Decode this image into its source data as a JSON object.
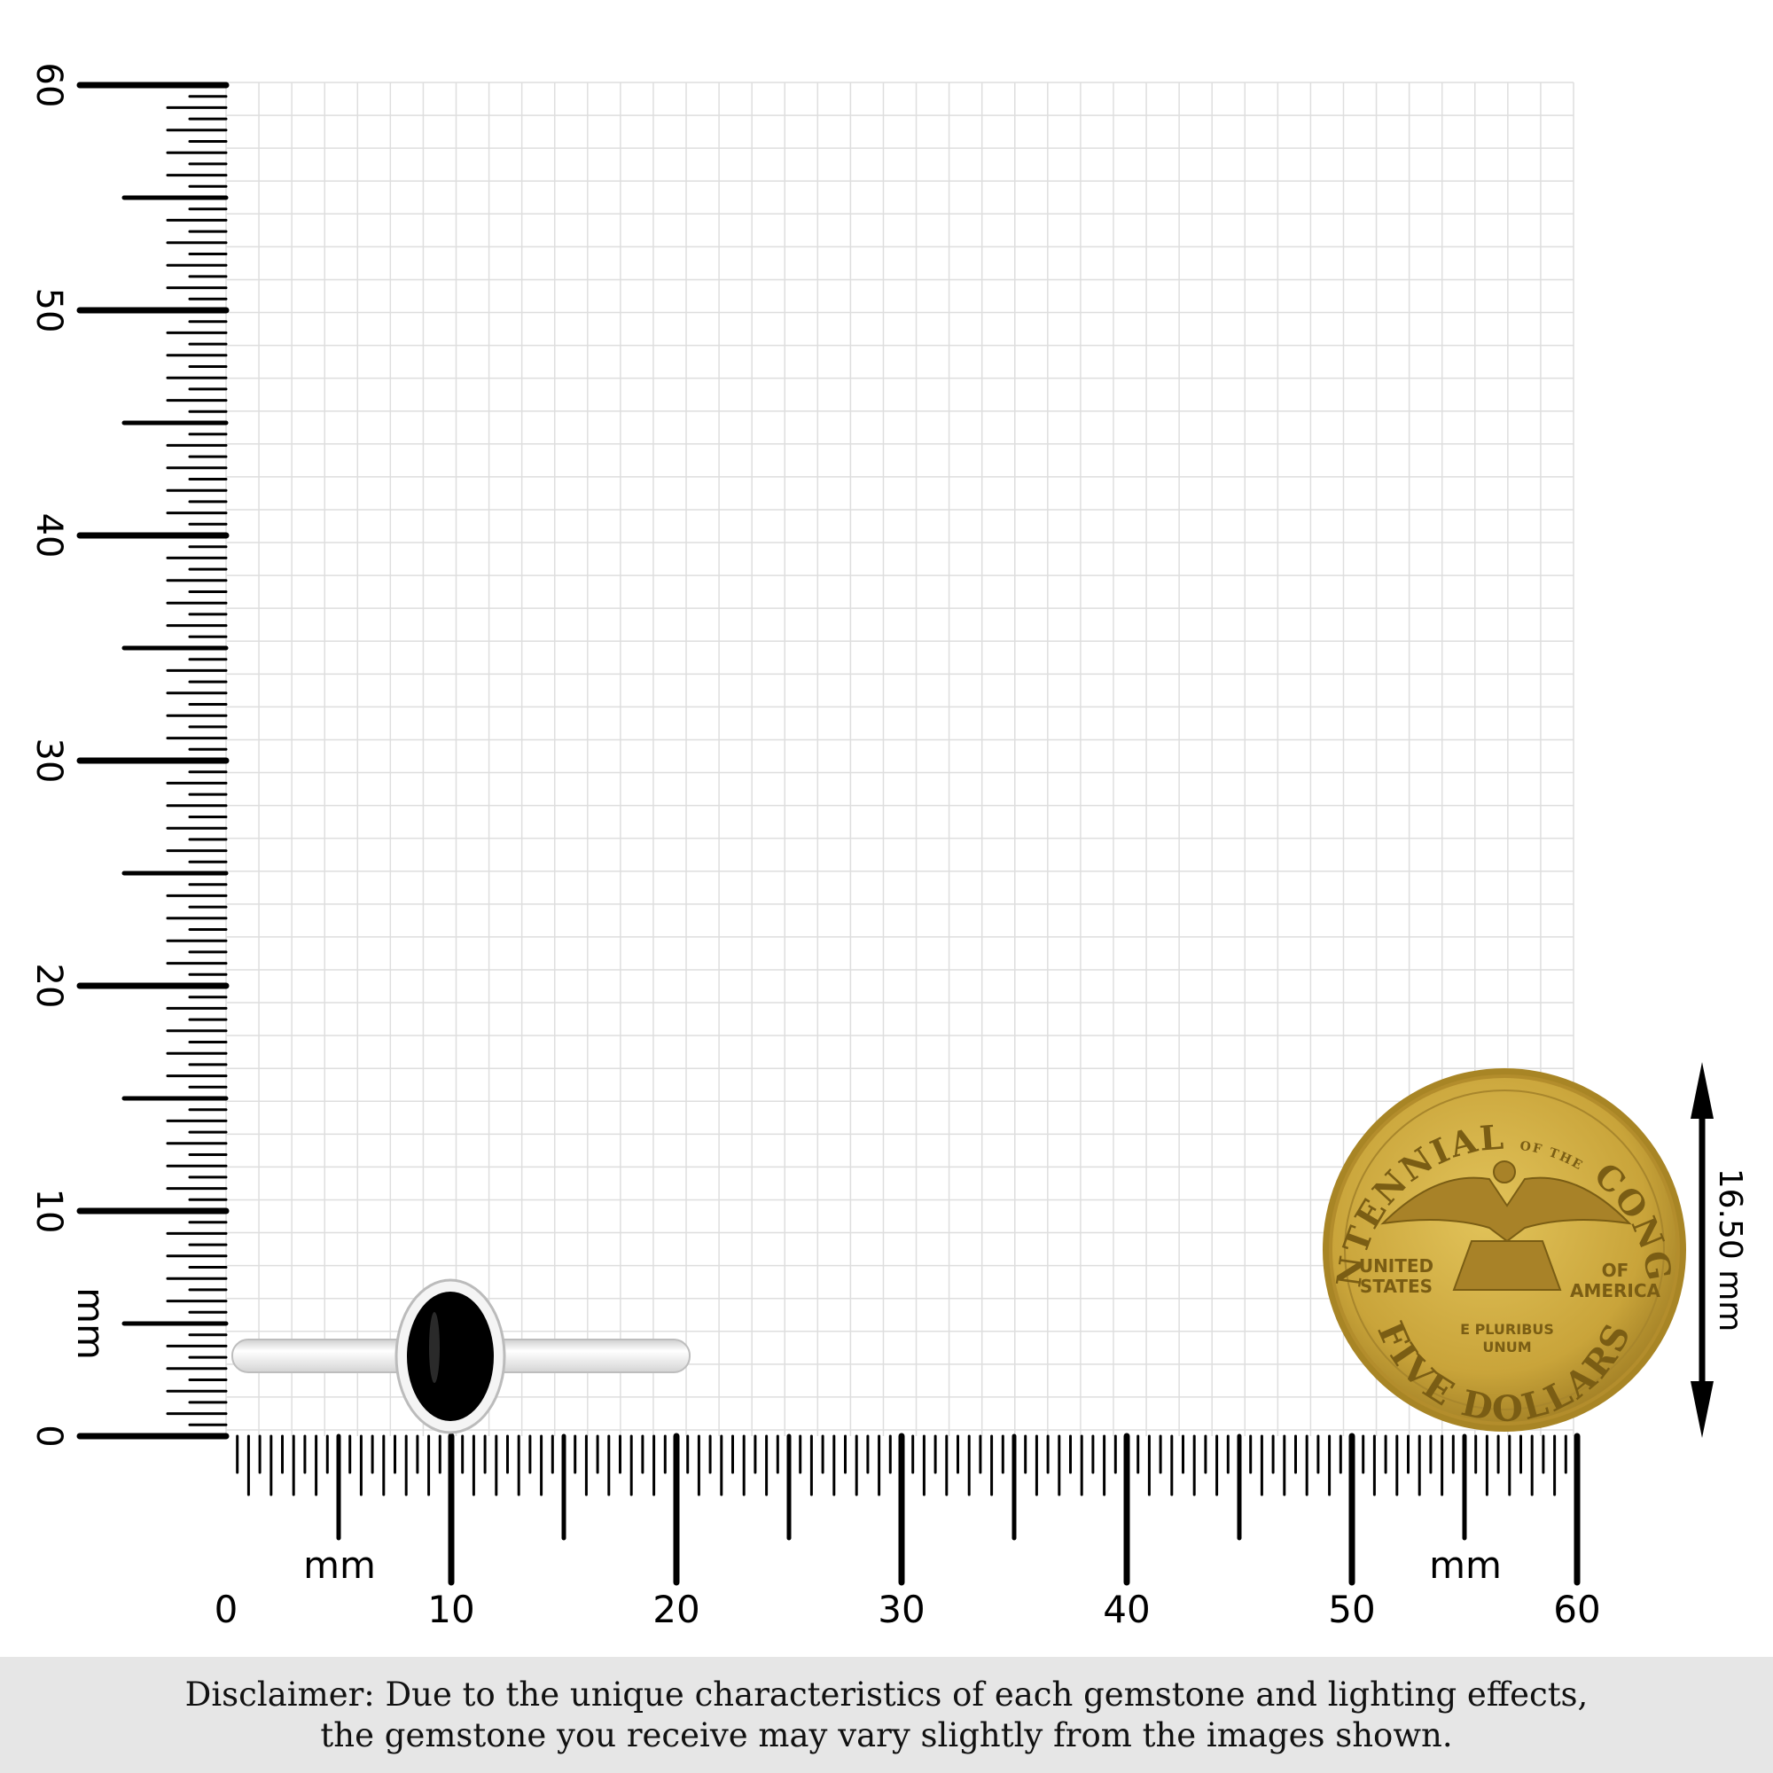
{
  "ruler": {
    "unit_label": "mm",
    "min": 0,
    "max": 60,
    "major_step": 10,
    "vertical_labels": [
      "0",
      "10",
      "20",
      "30",
      "40",
      "50",
      "60"
    ],
    "horizontal_labels": [
      "0",
      "10",
      "20",
      "30",
      "40",
      "50",
      "60"
    ]
  },
  "product": {
    "type": "ring",
    "stone_color": "#000000",
    "metal_color": "#e8e8e8"
  },
  "coin": {
    "top_text": "BICENTENNIAL",
    "of_the": "OF THE",
    "right_text": "CONGRESS",
    "left_mid": [
      "UNITED",
      "STATES"
    ],
    "right_mid": [
      "OF",
      "AMERICA"
    ],
    "motto": [
      "E PLURIBUS",
      "UNUM"
    ],
    "bottom_text": "FIVE DOLLARS",
    "diameter_label": "16.50 mm",
    "color": "#c9a43a"
  },
  "disclaimer": {
    "line1": "Disclaimer: Due to the unique characteristics of each gemstone and lighting effects,",
    "line2": "the gemstone you receive may vary slightly from the images shown."
  },
  "colors": {
    "grid": "#dedede",
    "ruler": "#000000",
    "disclaimer_bg": "#e6e6e6"
  }
}
